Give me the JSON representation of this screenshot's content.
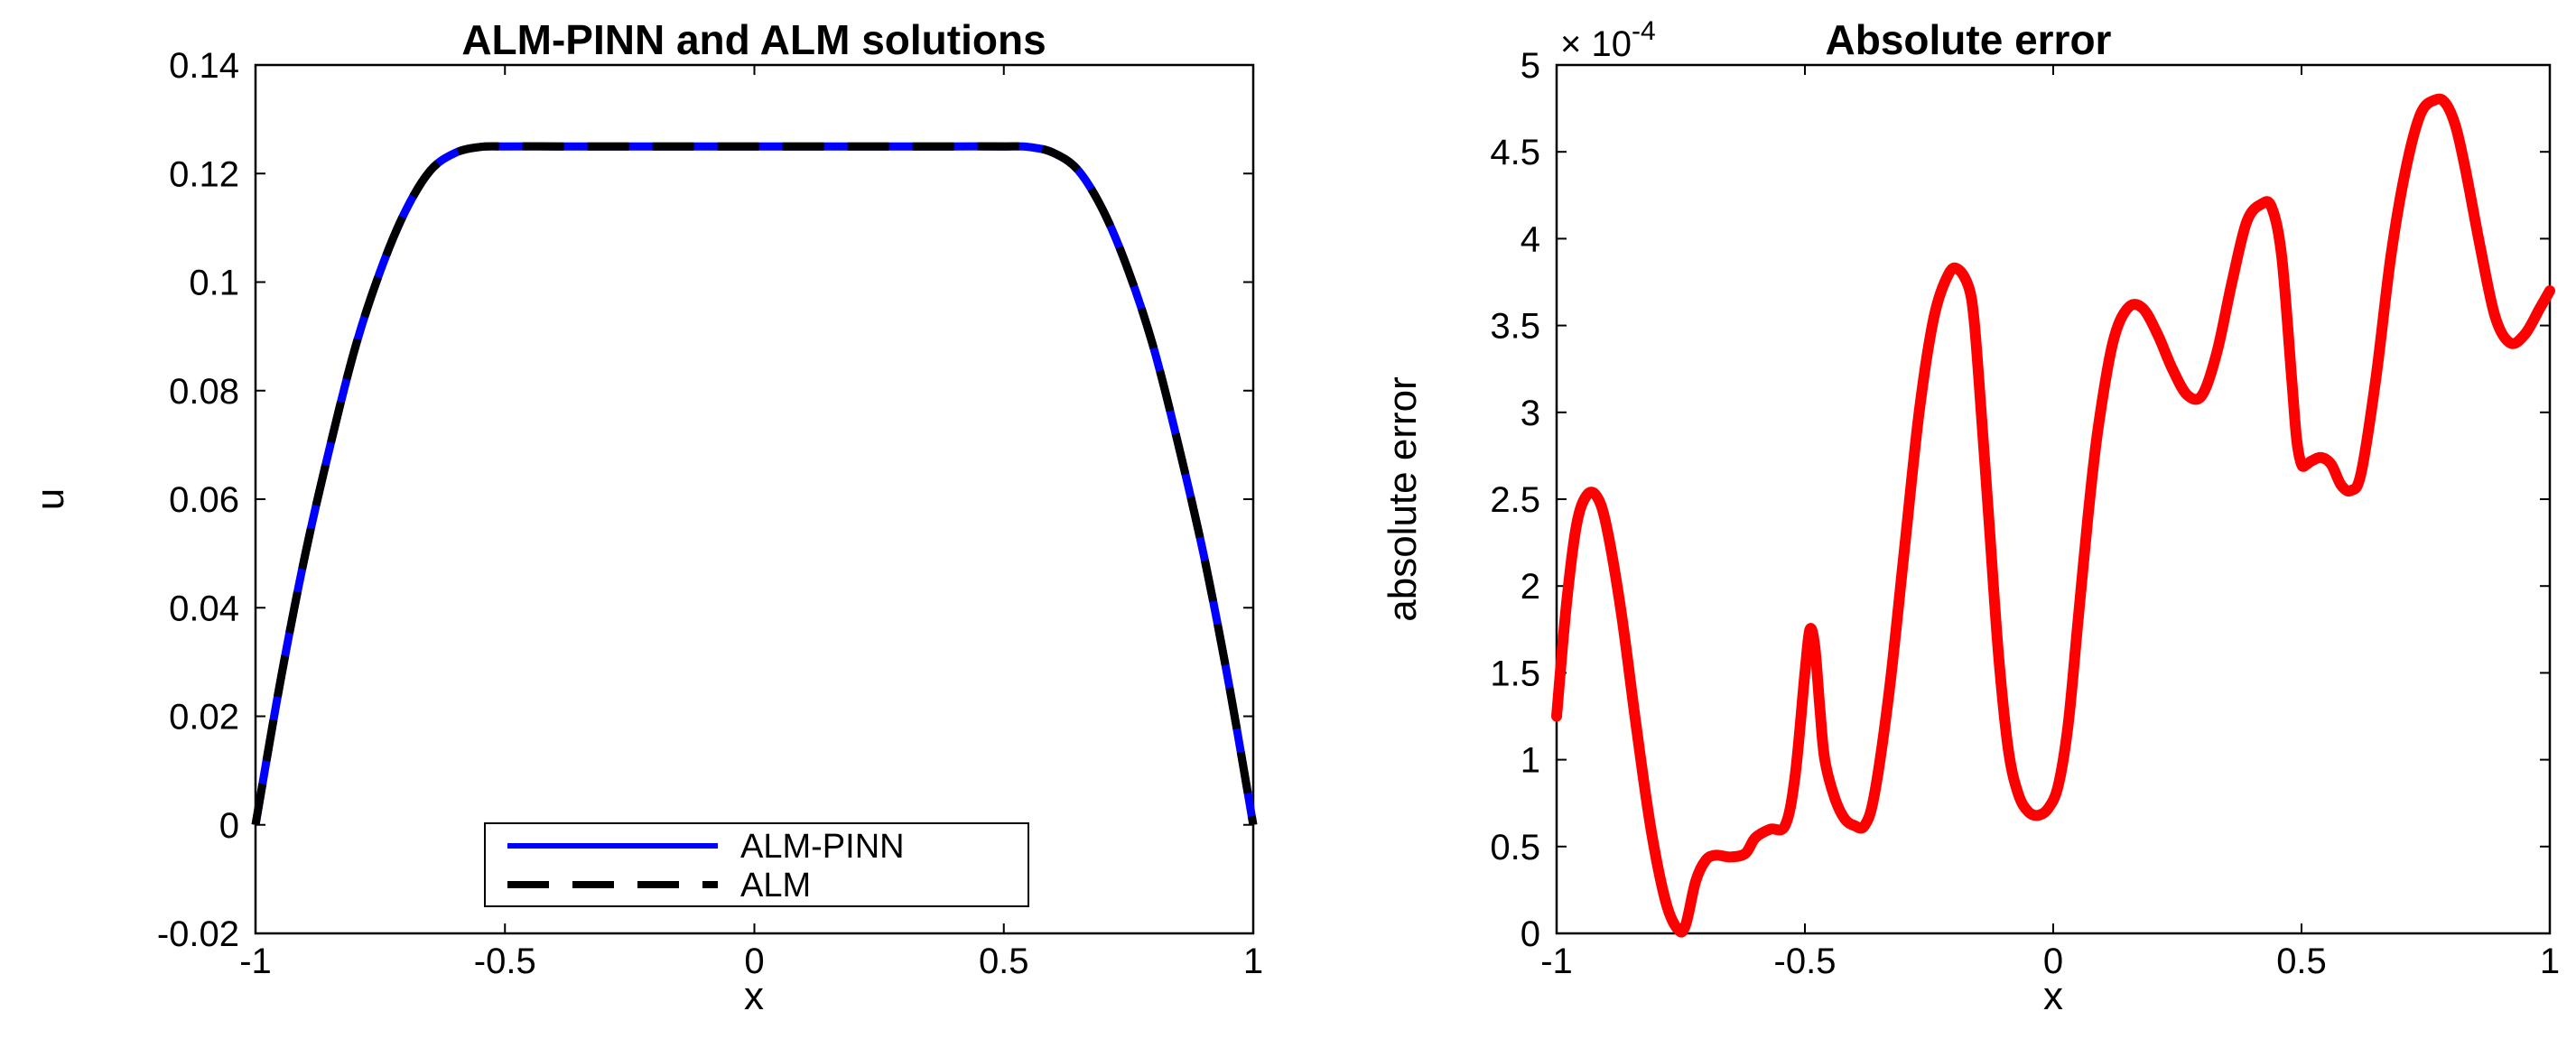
{
  "chart_data": [
    {
      "type": "line",
      "title": "ALM-PINN and ALM solutions",
      "xlabel": "x",
      "ylabel": "u",
      "xlim": [
        -1,
        1
      ],
      "ylim": [
        -0.02,
        0.14
      ],
      "xticks": [
        -1,
        -0.5,
        0,
        0.5,
        1
      ],
      "xtick_labels": [
        "-1",
        "-0.5",
        "0",
        "0.5",
        "1"
      ],
      "yticks": [
        -0.02,
        0,
        0.02,
        0.04,
        0.06,
        0.08,
        0.1,
        0.12,
        0.14
      ],
      "ytick_labels": [
        "-0.02",
        "0",
        "0.02",
        "0.04",
        "0.06",
        "0.08",
        "0.1",
        "0.12",
        "0.14"
      ],
      "grid": false,
      "legend_position": "bottom-center",
      "series": [
        {
          "name": "ALM-PINN",
          "color": "#0000ff",
          "style": "solid",
          "x": [
            -1,
            -0.95,
            -0.9,
            -0.85,
            -0.8,
            -0.75,
            -0.7,
            -0.65,
            -0.6,
            -0.55,
            -0.5,
            -0.4,
            -0.3,
            -0.2,
            -0.1,
            0,
            0.1,
            0.2,
            0.3,
            0.4,
            0.5,
            0.55,
            0.6,
            0.65,
            0.7,
            0.75,
            0.8,
            0.85,
            0.9,
            0.95,
            1
          ],
          "y": [
            0,
            0.0265,
            0.05,
            0.07,
            0.088,
            0.102,
            0.113,
            0.1205,
            0.1238,
            0.1249,
            0.125,
            0.125,
            0.125,
            0.125,
            0.125,
            0.125,
            0.125,
            0.125,
            0.125,
            0.125,
            0.125,
            0.1249,
            0.1238,
            0.1205,
            0.113,
            0.102,
            0.088,
            0.07,
            0.05,
            0.0265,
            0
          ]
        },
        {
          "name": "ALM",
          "color": "#000000",
          "style": "dashed",
          "x": [
            -1,
            -0.95,
            -0.9,
            -0.85,
            -0.8,
            -0.75,
            -0.7,
            -0.65,
            -0.6,
            -0.55,
            -0.5,
            -0.4,
            -0.3,
            -0.2,
            -0.1,
            0,
            0.1,
            0.2,
            0.3,
            0.4,
            0.5,
            0.55,
            0.6,
            0.65,
            0.7,
            0.75,
            0.8,
            0.85,
            0.9,
            0.95,
            1
          ],
          "y": [
            0,
            0.0265,
            0.05,
            0.07,
            0.088,
            0.102,
            0.113,
            0.1205,
            0.1238,
            0.1249,
            0.125,
            0.125,
            0.125,
            0.125,
            0.125,
            0.125,
            0.125,
            0.125,
            0.125,
            0.125,
            0.125,
            0.1249,
            0.1238,
            0.1205,
            0.113,
            0.102,
            0.088,
            0.07,
            0.05,
            0.0265,
            0
          ]
        }
      ]
    },
    {
      "type": "line",
      "title": "Absolute error",
      "xlabel": "x",
      "ylabel": "absolute error",
      "y_multiplier_base": "× 10",
      "y_multiplier_exponent": "-4",
      "xlim": [
        -1,
        1
      ],
      "ylim": [
        0,
        5
      ],
      "xticks": [
        -1,
        -0.5,
        0,
        0.5,
        1
      ],
      "xtick_labels": [
        "-1",
        "-0.5",
        "0",
        "0.5",
        "1"
      ],
      "yticks": [
        0,
        0.5,
        1,
        1.5,
        2,
        2.5,
        3,
        3.5,
        4,
        4.5,
        5
      ],
      "ytick_labels": [
        "0",
        "0.5",
        "1",
        "1.5",
        "2",
        "2.5",
        "3",
        "3.5",
        "4",
        "4.5",
        "5"
      ],
      "grid": false,
      "series": [
        {
          "name": "absolute error",
          "color": "#ff0000",
          "style": "solid",
          "x": [
            -1,
            -0.98,
            -0.96,
            -0.94,
            -0.92,
            -0.9,
            -0.87,
            -0.84,
            -0.81,
            -0.78,
            -0.755,
            -0.74,
            -0.72,
            -0.7,
            -0.68,
            -0.65,
            -0.62,
            -0.6,
            -0.57,
            -0.54,
            -0.52,
            -0.5,
            -0.49,
            -0.48,
            -0.47,
            -0.46,
            -0.44,
            -0.42,
            -0.4,
            -0.38,
            -0.36,
            -0.33,
            -0.3,
            -0.27,
            -0.24,
            -0.21,
            -0.19,
            -0.17,
            -0.16,
            -0.15,
            -0.13,
            -0.11,
            -0.09,
            -0.07,
            -0.05,
            -0.03,
            -0.01,
            0.01,
            0.03,
            0.05,
            0.07,
            0.09,
            0.12,
            0.15,
            0.18,
            0.21,
            0.24,
            0.27,
            0.3,
            0.33,
            0.36,
            0.39,
            0.42,
            0.44,
            0.46,
            0.48,
            0.49,
            0.5,
            0.51,
            0.52,
            0.54,
            0.56,
            0.58,
            0.6,
            0.62,
            0.65,
            0.68,
            0.71,
            0.74,
            0.77,
            0.79,
            0.81,
            0.83,
            0.86,
            0.89,
            0.92,
            0.95,
            0.98,
            1
          ],
          "y": [
            1.25,
            1.9,
            2.35,
            2.52,
            2.52,
            2.35,
            1.85,
            1.2,
            0.6,
            0.18,
            0.02,
            0.05,
            0.3,
            0.42,
            0.45,
            0.44,
            0.46,
            0.55,
            0.6,
            0.62,
            0.9,
            1.5,
            1.75,
            1.65,
            1.3,
            1.0,
            0.78,
            0.66,
            0.62,
            0.62,
            0.8,
            1.4,
            2.2,
            3.0,
            3.55,
            3.8,
            3.82,
            3.72,
            3.55,
            3.2,
            2.4,
            1.6,
            1.05,
            0.8,
            0.7,
            0.68,
            0.72,
            0.85,
            1.2,
            1.8,
            2.4,
            2.9,
            3.4,
            3.6,
            3.6,
            3.45,
            3.25,
            3.1,
            3.1,
            3.35,
            3.75,
            4.1,
            4.2,
            4.18,
            3.9,
            3.2,
            2.85,
            2.7,
            2.7,
            2.72,
            2.74,
            2.7,
            2.58,
            2.55,
            2.65,
            3.2,
            3.9,
            4.4,
            4.72,
            4.8,
            4.78,
            4.65,
            4.4,
            3.95,
            3.55,
            3.4,
            3.45,
            3.6,
            3.7
          ]
        }
      ]
    }
  ]
}
